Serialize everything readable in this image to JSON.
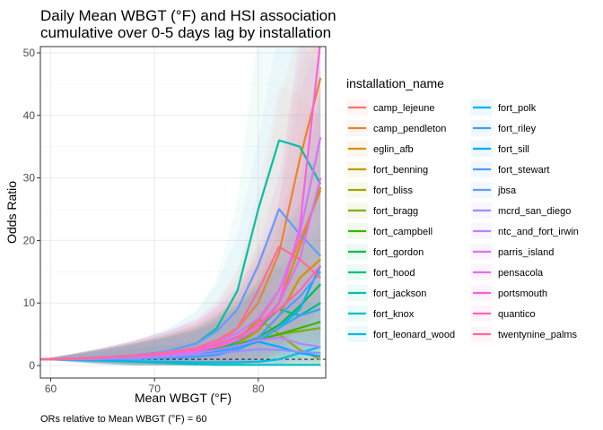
{
  "chart_data": {
    "type": "line",
    "title_lines": [
      "Daily Mean WBGT (°F) and HSI association",
      "cumulative over 0-5 days lag by installation"
    ],
    "xlabel": "Mean WBGT (°F)",
    "ylabel": "Odds Ratio",
    "caption": "ORs relative to Mean WBGT (°F) = 60",
    "xlim": [
      59,
      86.5
    ],
    "ylim": [
      -2,
      51
    ],
    "x_ticks": [
      60,
      70,
      80
    ],
    "y_ticks": [
      0,
      10,
      20,
      30,
      40,
      50
    ],
    "reference_line_y": 1,
    "grid": true,
    "legend_title": "installation_name",
    "legend_position": "right",
    "x": [
      59,
      62,
      65,
      68,
      71,
      74,
      76,
      78,
      80,
      82,
      84,
      86
    ],
    "series": [
      {
        "name": "camp_lejeune",
        "color": "#F8766D",
        "values": [
          1,
          1.1,
          1.3,
          1.6,
          2.0,
          2.5,
          3.2,
          4.5,
          7.0,
          12.0,
          20.0,
          28.0
        ]
      },
      {
        "name": "camp_pendleton",
        "color": "#EA8331",
        "values": [
          1,
          1.1,
          1.2,
          1.3,
          1.6,
          2.2,
          3.5,
          6.0,
          10.0,
          18.0,
          33.0,
          46.0
        ]
      },
      {
        "name": "eglin_afb",
        "color": "#D89000",
        "values": [
          1,
          1.1,
          1.2,
          1.3,
          1.5,
          1.8,
          2.2,
          3.0,
          4.5,
          8.0,
          14.0,
          17.0
        ]
      },
      {
        "name": "fort_benning",
        "color": "#C09B00",
        "values": [
          1,
          1.1,
          1.2,
          1.4,
          1.6,
          2.0,
          2.6,
          3.5,
          5.5,
          10.0,
          19.0,
          28.5
        ]
      },
      {
        "name": "fort_bliss",
        "color": "#A3A500",
        "values": [
          1,
          1.0,
          1.1,
          1.2,
          1.4,
          1.8,
          2.5,
          4.0,
          7.5,
          5.0,
          2.5,
          1.0
        ]
      },
      {
        "name": "fort_bragg",
        "color": "#7CAE00",
        "values": [
          1,
          1.1,
          1.2,
          1.4,
          1.7,
          2.2,
          2.8,
          3.5,
          4.2,
          5.0,
          5.5,
          6.0
        ]
      },
      {
        "name": "fort_campbell",
        "color": "#39B600",
        "values": [
          1,
          1.0,
          1.1,
          1.3,
          1.5,
          1.9,
          2.4,
          3.0,
          4.0,
          5.0,
          6.0,
          7.0
        ]
      },
      {
        "name": "fort_gordon",
        "color": "#00BB4E",
        "values": [
          1,
          1.1,
          1.2,
          1.4,
          1.7,
          2.1,
          2.6,
          3.2,
          4.5,
          6.5,
          9.5,
          13.0
        ]
      },
      {
        "name": "fort_hood",
        "color": "#00BF7D",
        "values": [
          1,
          1.0,
          1.1,
          1.2,
          1.4,
          1.7,
          2.3,
          3.8,
          6.0,
          9.0,
          8.0,
          10.0
        ]
      },
      {
        "name": "fort_jackson",
        "color": "#00C1A3",
        "values": [
          1,
          1.1,
          1.3,
          1.6,
          2.2,
          3.5,
          6.0,
          12.0,
          25.0,
          36.0,
          35.0,
          29.0
        ]
      },
      {
        "name": "fort_knox",
        "color": "#00BFC4",
        "values": [
          1,
          0.9,
          0.8,
          0.6,
          0.4,
          0.2,
          0.1,
          0.1,
          0.1,
          0.1,
          0.1,
          0.1
        ]
      },
      {
        "name": "fort_leonard_wood",
        "color": "#00BAE0",
        "values": [
          1,
          0.9,
          0.8,
          0.7,
          0.6,
          0.5,
          0.5,
          0.5,
          0.6,
          1.0,
          2.0,
          3.0
        ]
      },
      {
        "name": "fort_polk",
        "color": "#00B0F6",
        "values": [
          1,
          1.0,
          1.1,
          1.2,
          1.4,
          1.6,
          2.0,
          2.8,
          4.0,
          6.0,
          9.0,
          16.0
        ]
      },
      {
        "name": "fort_riley",
        "color": "#35A2FF",
        "values": [
          1,
          1.0,
          1.0,
          1.1,
          1.2,
          1.4,
          1.7,
          2.5,
          4.0,
          6.0,
          8.0,
          9.0
        ]
      },
      {
        "name": "fort_sill",
        "color": "#00A9FF",
        "values": [
          1,
          1.0,
          1.1,
          1.2,
          1.4,
          1.7,
          2.2,
          3.0,
          3.8,
          3.0,
          2.0,
          1.5
        ]
      },
      {
        "name": "fort_stewart",
        "color": "#4A9FFF",
        "values": [
          1,
          1.0,
          1.0,
          1.1,
          1.3,
          1.6,
          2.0,
          2.8,
          4.5,
          8.0,
          11.0,
          15.0
        ]
      },
      {
        "name": "jbsa",
        "color": "#619CFF",
        "values": [
          1,
          1.1,
          1.3,
          1.6,
          2.2,
          3.5,
          5.5,
          9.0,
          16.0,
          25.0,
          21.0,
          17.5
        ]
      },
      {
        "name": "mcrd_san_diego",
        "color": "#9590FF",
        "values": [
          1,
          1.0,
          1.1,
          1.2,
          1.4,
          1.7,
          2.0,
          2.3,
          2.6,
          2.5,
          2.2,
          2.0
        ]
      },
      {
        "name": "ntc_and_fort_irwin",
        "color": "#B983FF",
        "values": [
          1,
          1.0,
          1.1,
          1.3,
          1.6,
          2.0,
          2.5,
          3.2,
          4.0,
          4.5,
          3.5,
          3.0
        ]
      },
      {
        "name": "parris_island",
        "color": "#DB72FB",
        "values": [
          1,
          1.1,
          1.3,
          1.6,
          2.1,
          2.8,
          3.8,
          5.2,
          7.5,
          12.0,
          21.0,
          36.5
        ]
      },
      {
        "name": "pensacola",
        "color": "#E76BF3",
        "values": [
          1,
          1.1,
          1.3,
          1.6,
          2.0,
          2.6,
          3.3,
          4.5,
          6.5,
          10.0,
          17.0,
          30.0
        ]
      },
      {
        "name": "portsmouth",
        "color": "#F763E0",
        "values": [
          1,
          1.1,
          1.3,
          1.5,
          1.8,
          2.3,
          3.0,
          4.0,
          6.0,
          10.0,
          22.0,
          52.0
        ]
      },
      {
        "name": "quantico",
        "color": "#FF62BC",
        "values": [
          1,
          1.1,
          1.3,
          1.6,
          2.0,
          2.6,
          3.4,
          4.6,
          6.5,
          9.0,
          12.0,
          16.0
        ]
      },
      {
        "name": "twentynine_palms",
        "color": "#FF6C91",
        "values": [
          1,
          1.1,
          1.3,
          1.6,
          2.0,
          2.8,
          4.0,
          6.0,
          12.0,
          19.0,
          17.0,
          14.0
        ]
      }
    ]
  }
}
